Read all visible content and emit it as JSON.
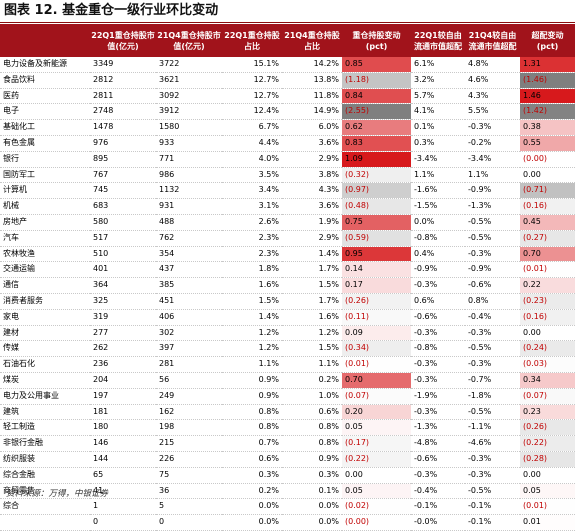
{
  "title": "图表 12.  基金重仓一级行业环比变动",
  "source": "资料来源：万得，中银证券",
  "columns": [
    "",
    "22Q1重仓持股市值(亿元)",
    "21Q4重仓持股市值(亿元)",
    "22Q1重仓持股占比",
    "21Q4重仓持股占比",
    "重仓持股变动 (pct)",
    "22Q1较自由流通市值超配",
    "21Q4较自由流通市值超配",
    "超配变动 (pct)"
  ],
  "colors": {
    "header_bg": "#a1131b",
    "negative_text": "#c00000",
    "pos_strong": "#d7191c",
    "neg_scale": "#7f7f7f"
  },
  "rows": [
    {
      "name": "电力设备及新能源",
      "q1": "3349",
      "q4": "3722",
      "p1": "15.1%",
      "p4": "14.2%",
      "chg": "0.85",
      "chg_v": 0.85,
      "o1": "6.1%",
      "o4": "4.8%",
      "ochg": "1.31",
      "ochg_v": 1.31
    },
    {
      "name": "食品饮料",
      "q1": "2812",
      "q4": "3621",
      "p1": "12.7%",
      "p4": "13.8%",
      "chg": "(1.18)",
      "chg_v": -1.18,
      "o1": "3.2%",
      "o4": "4.6%",
      "ochg": "(1.46)",
      "ochg_v": -1.46
    },
    {
      "name": "医药",
      "q1": "2811",
      "q4": "3092",
      "p1": "12.7%",
      "p4": "11.8%",
      "chg": "0.84",
      "chg_v": 0.84,
      "o1": "5.7%",
      "o4": "4.3%",
      "ochg": "1.46",
      "ochg_v": 1.46
    },
    {
      "name": "电子",
      "q1": "2748",
      "q4": "3912",
      "p1": "12.4%",
      "p4": "14.9%",
      "chg": "(2.55)",
      "chg_v": -2.55,
      "o1": "4.1%",
      "o4": "5.5%",
      "ochg": "(1.42)",
      "ochg_v": -1.42
    },
    {
      "name": "基础化工",
      "q1": "1478",
      "q4": "1580",
      "p1": "6.7%",
      "p4": "6.0%",
      "chg": "0.62",
      "chg_v": 0.62,
      "o1": "0.1%",
      "o4": "-0.3%",
      "ochg": "0.38",
      "ochg_v": 0.38
    },
    {
      "name": "有色金属",
      "q1": "976",
      "q4": "933",
      "p1": "4.4%",
      "p4": "3.6%",
      "chg": "0.83",
      "chg_v": 0.83,
      "o1": "0.3%",
      "o4": "-0.2%",
      "ochg": "0.55",
      "ochg_v": 0.55
    },
    {
      "name": "银行",
      "q1": "895",
      "q4": "771",
      "p1": "4.0%",
      "p4": "2.9%",
      "chg": "1.09",
      "chg_v": 1.09,
      "o1": "-3.4%",
      "o4": "-3.4%",
      "ochg": "(0.00)",
      "ochg_v": -0.001
    },
    {
      "name": "国防军工",
      "q1": "767",
      "q4": "986",
      "p1": "3.5%",
      "p4": "3.8%",
      "chg": "(0.32)",
      "chg_v": -0.32,
      "o1": "1.1%",
      "o4": "1.1%",
      "ochg": "0.00",
      "ochg_v": 0.0
    },
    {
      "name": "计算机",
      "q1": "745",
      "q4": "1132",
      "p1": "3.4%",
      "p4": "4.3%",
      "chg": "(0.97)",
      "chg_v": -0.97,
      "o1": "-1.6%",
      "o4": "-0.9%",
      "ochg": "(0.71)",
      "ochg_v": -0.71
    },
    {
      "name": "机械",
      "q1": "683",
      "q4": "931",
      "p1": "3.1%",
      "p4": "3.6%",
      "chg": "(0.48)",
      "chg_v": -0.48,
      "o1": "-1.5%",
      "o4": "-1.3%",
      "ochg": "(0.16)",
      "ochg_v": -0.16
    },
    {
      "name": "房地产",
      "q1": "580",
      "q4": "488",
      "p1": "2.6%",
      "p4": "1.9%",
      "chg": "0.75",
      "chg_v": 0.75,
      "o1": "0.0%",
      "o4": "-0.5%",
      "ochg": "0.45",
      "ochg_v": 0.45
    },
    {
      "name": "汽车",
      "q1": "517",
      "q4": "762",
      "p1": "2.3%",
      "p4": "2.9%",
      "chg": "(0.59)",
      "chg_v": -0.59,
      "o1": "-0.8%",
      "o4": "-0.5%",
      "ochg": "(0.27)",
      "ochg_v": -0.27
    },
    {
      "name": "农林牧渔",
      "q1": "510",
      "q4": "354",
      "p1": "2.3%",
      "p4": "1.4%",
      "chg": "0.95",
      "chg_v": 0.95,
      "o1": "0.4%",
      "o4": "-0.3%",
      "ochg": "0.70",
      "ochg_v": 0.7
    },
    {
      "name": "交通运输",
      "q1": "401",
      "q4": "437",
      "p1": "1.8%",
      "p4": "1.7%",
      "chg": "0.14",
      "chg_v": 0.14,
      "o1": "-0.9%",
      "o4": "-0.9%",
      "ochg": "(0.01)",
      "ochg_v": -0.01
    },
    {
      "name": "通信",
      "q1": "364",
      "q4": "385",
      "p1": "1.6%",
      "p4": "1.5%",
      "chg": "0.17",
      "chg_v": 0.17,
      "o1": "-0.3%",
      "o4": "-0.6%",
      "ochg": "0.22",
      "ochg_v": 0.22
    },
    {
      "name": "消费者服务",
      "q1": "325",
      "q4": "451",
      "p1": "1.5%",
      "p4": "1.7%",
      "chg": "(0.26)",
      "chg_v": -0.26,
      "o1": "0.6%",
      "o4": "0.8%",
      "ochg": "(0.23)",
      "ochg_v": -0.23
    },
    {
      "name": "家电",
      "q1": "319",
      "q4": "406",
      "p1": "1.4%",
      "p4": "1.6%",
      "chg": "(0.11)",
      "chg_v": -0.11,
      "o1": "-0.6%",
      "o4": "-0.4%",
      "ochg": "(0.16)",
      "ochg_v": -0.16
    },
    {
      "name": "建材",
      "q1": "277",
      "q4": "302",
      "p1": "1.2%",
      "p4": "1.2%",
      "chg": "0.09",
      "chg_v": 0.09,
      "o1": "-0.3%",
      "o4": "-0.3%",
      "ochg": "0.00",
      "ochg_v": 0.0
    },
    {
      "name": "传媒",
      "q1": "262",
      "q4": "397",
      "p1": "1.2%",
      "p4": "1.5%",
      "chg": "(0.34)",
      "chg_v": -0.34,
      "o1": "-0.8%",
      "o4": "-0.5%",
      "ochg": "(0.24)",
      "ochg_v": -0.24
    },
    {
      "name": "石油石化",
      "q1": "236",
      "q4": "281",
      "p1": "1.1%",
      "p4": "1.1%",
      "chg": "(0.01)",
      "chg_v": -0.01,
      "o1": "-0.3%",
      "o4": "-0.3%",
      "ochg": "(0.03)",
      "ochg_v": -0.03
    },
    {
      "name": "煤炭",
      "q1": "204",
      "q4": "56",
      "p1": "0.9%",
      "p4": "0.2%",
      "chg": "0.70",
      "chg_v": 0.7,
      "o1": "-0.3%",
      "o4": "-0.7%",
      "ochg": "0.34",
      "ochg_v": 0.34
    },
    {
      "name": "电力及公用事业",
      "q1": "197",
      "q4": "249",
      "p1": "0.9%",
      "p4": "1.0%",
      "chg": "(0.07)",
      "chg_v": -0.07,
      "o1": "-1.9%",
      "o4": "-1.8%",
      "ochg": "(0.07)",
      "ochg_v": -0.07
    },
    {
      "name": "建筑",
      "q1": "181",
      "q4": "162",
      "p1": "0.8%",
      "p4": "0.6%",
      "chg": "0.20",
      "chg_v": 0.2,
      "o1": "-0.3%",
      "o4": "-0.5%",
      "ochg": "0.23",
      "ochg_v": 0.23
    },
    {
      "name": "轻工制造",
      "q1": "180",
      "q4": "198",
      "p1": "0.8%",
      "p4": "0.8%",
      "chg": "0.05",
      "chg_v": 0.05,
      "o1": "-1.3%",
      "o4": "-1.1%",
      "ochg": "(0.26)",
      "ochg_v": -0.26
    },
    {
      "name": "非银行金融",
      "q1": "146",
      "q4": "215",
      "p1": "0.7%",
      "p4": "0.8%",
      "chg": "(0.17)",
      "chg_v": -0.17,
      "o1": "-4.8%",
      "o4": "-4.6%",
      "ochg": "(0.22)",
      "ochg_v": -0.22
    },
    {
      "name": "纺织服装",
      "q1": "144",
      "q4": "226",
      "p1": "0.6%",
      "p4": "0.9%",
      "chg": "(0.22)",
      "chg_v": -0.22,
      "o1": "-0.6%",
      "o4": "-0.3%",
      "ochg": "(0.28)",
      "ochg_v": -0.28
    },
    {
      "name": "综合金融",
      "q1": "65",
      "q4": "75",
      "p1": "0.3%",
      "p4": "0.3%",
      "chg": "0.00",
      "chg_v": 0.0,
      "o1": "-0.3%",
      "o4": "-0.3%",
      "ochg": "0.00",
      "ochg_v": 0.0
    },
    {
      "name": "商贸零售",
      "q1": "41",
      "q4": "36",
      "p1": "0.2%",
      "p4": "0.1%",
      "chg": "0.05",
      "chg_v": 0.05,
      "o1": "-0.4%",
      "o4": "-0.5%",
      "ochg": "0.05",
      "ochg_v": 0.05
    },
    {
      "name": "综合",
      "q1": "1",
      "q4": "5",
      "p1": "0.0%",
      "p4": "0.0%",
      "chg": "(0.02)",
      "chg_v": -0.02,
      "o1": "-0.1%",
      "o4": "-0.1%",
      "ochg": "(0.01)",
      "ochg_v": -0.01
    },
    {
      "name": "",
      "q1": "0",
      "q4": "0",
      "p1": "0.0%",
      "p4": "0.0%",
      "chg": "(0.00)",
      "chg_v": -0.001,
      "o1": "-0.0%",
      "o4": "-0.1%",
      "ochg": "0.01",
      "ochg_v": 0.01
    }
  ]
}
